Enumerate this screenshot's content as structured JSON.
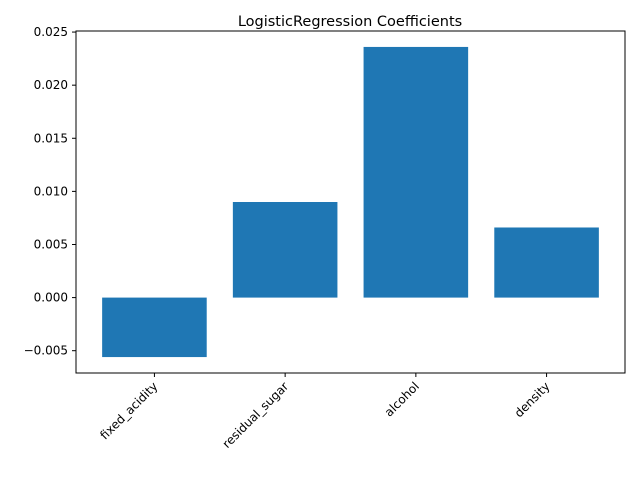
{
  "chart_data": {
    "type": "bar",
    "title": "LogisticRegression Coefficients",
    "categories": [
      "fixed_acidity",
      "residual_sugar",
      "alcohol",
      "density"
    ],
    "values": [
      -0.0056,
      0.009,
      0.0236,
      0.0066
    ],
    "xlabel": "",
    "ylabel": "",
    "ylim": [
      -0.0071,
      0.0251
    ],
    "yticks": [
      -0.005,
      0.0,
      0.005,
      0.01,
      0.015,
      0.02,
      0.025
    ],
    "ytick_labels": [
      "−0.005",
      "0.000",
      "0.005",
      "0.010",
      "0.015",
      "0.020",
      "0.025"
    ],
    "xtick_rotation_deg": 45,
    "grid": false,
    "bar_color": "#1f77b4"
  }
}
